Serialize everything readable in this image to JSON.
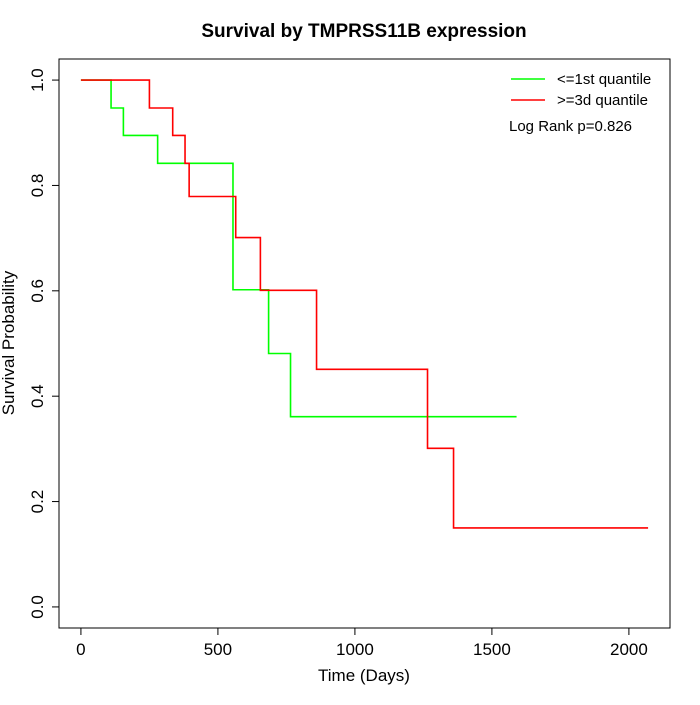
{
  "chart_data": {
    "type": "line",
    "title": "Survival by TMPRSS11B expression",
    "xlabel": "Time (Days)",
    "ylabel": "Survival Probability",
    "xlim": [
      -80,
      2150
    ],
    "ylim": [
      -0.04,
      1.04
    ],
    "x_ticks": [
      0,
      500,
      1000,
      1500,
      2000
    ],
    "x_tick_labels": [
      "0",
      "500",
      "1000",
      "1500",
      "2000"
    ],
    "y_ticks": [
      0.0,
      0.2,
      0.4,
      0.6,
      0.8,
      1.0
    ],
    "y_tick_labels": [
      "0.0",
      "0.2",
      "0.4",
      "0.6",
      "0.8",
      "1.0"
    ],
    "grid": false,
    "legend_position": "top-right",
    "annotation": "Log Rank p=0.826",
    "series": [
      {
        "name": "<=1st quantile",
        "color": "#00FF00",
        "step": true,
        "x": [
          0,
          110,
          155,
          280,
          555,
          685,
          765,
          1590
        ],
        "y": [
          1.0,
          0.947,
          0.895,
          0.842,
          0.602,
          0.481,
          0.361,
          0.361
        ]
      },
      {
        "name": ">=3d quantile",
        "color": "#FF0000",
        "step": true,
        "x": [
          0,
          250,
          335,
          380,
          395,
          565,
          655,
          860,
          1265,
          1360,
          2070
        ],
        "y": [
          1.0,
          0.947,
          0.895,
          0.842,
          0.779,
          0.701,
          0.601,
          0.451,
          0.301,
          0.15,
          0.15
        ]
      }
    ]
  }
}
